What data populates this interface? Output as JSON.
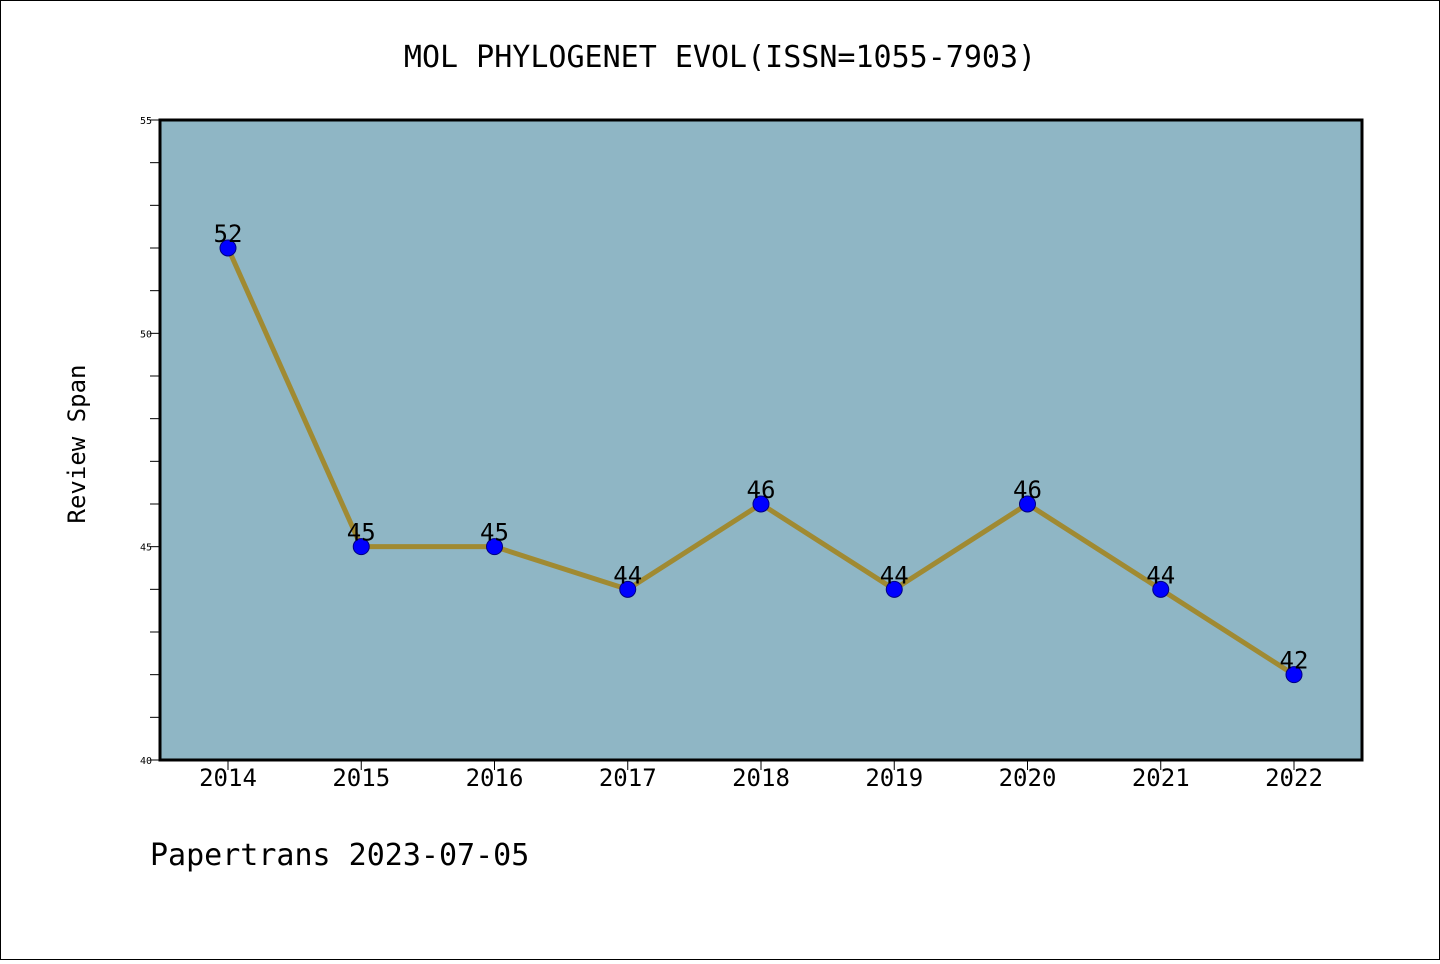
{
  "chart_data": {
    "type": "line",
    "title": "MOL PHYLOGENET EVOL(ISSN=1055-7903)",
    "xlabel": "",
    "ylabel": "Review Span",
    "categories": [
      "2014",
      "2015",
      "2016",
      "2017",
      "2018",
      "2019",
      "2020",
      "2021",
      "2022"
    ],
    "series": [
      {
        "values": [
          52,
          45,
          45,
          44,
          46,
          44,
          46,
          44,
          42
        ]
      }
    ],
    "ylim": [
      40,
      55
    ],
    "yticks": [
      "40",
      "45",
      "50",
      "55"
    ],
    "grid": false,
    "legend": "none",
    "colors": {
      "plot_bg": "#8fb6c5",
      "line": "#a08a32",
      "marker": "#0000ff",
      "marker_edge": "#000080"
    }
  },
  "footer": "Papertrans 2023-07-05"
}
